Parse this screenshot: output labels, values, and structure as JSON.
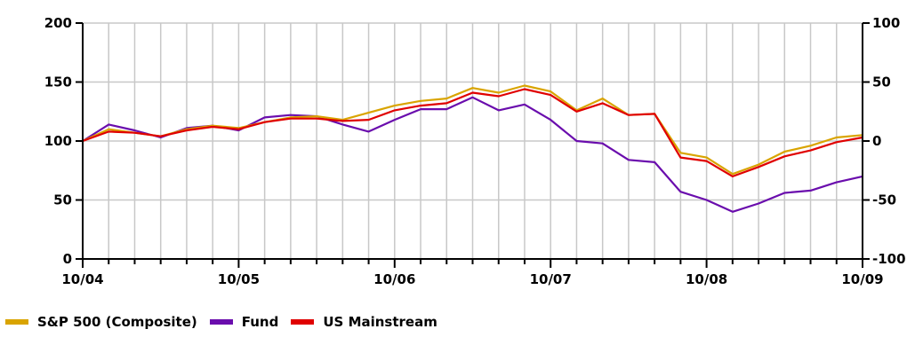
{
  "chart_data": {
    "type": "line",
    "left_axis": {
      "ticks": [
        0,
        50,
        100,
        150,
        200
      ],
      "tick_labels": [
        "0",
        "50",
        "100",
        "150",
        "200"
      ],
      "ylim": [
        0,
        200
      ]
    },
    "right_axis": {
      "ticks": [
        -100,
        -50,
        0,
        50,
        100
      ],
      "tick_labels": [
        "-100",
        "-50",
        "0",
        "50",
        "100"
      ],
      "ylim": [
        -100,
        100
      ]
    },
    "x_axis": {
      "xlim": [
        2004.75,
        2009.75
      ],
      "ticks": [
        2004.75,
        2005.75,
        2006.75,
        2007.75,
        2008.75,
        2009.75
      ],
      "tick_labels": [
        "10/04",
        "10/05",
        "10/06",
        "10/07",
        "10/08",
        "10/09"
      ]
    },
    "grid": true,
    "legend_position": "bottom-left",
    "x": [
      2004.75,
      2004.917,
      2005.083,
      2005.25,
      2005.417,
      2005.583,
      2005.75,
      2005.917,
      2006.083,
      2006.25,
      2006.417,
      2006.583,
      2006.75,
      2006.917,
      2007.083,
      2007.25,
      2007.417,
      2007.583,
      2007.75,
      2007.917,
      2008.083,
      2008.25,
      2008.417,
      2008.583,
      2008.75,
      2008.917,
      2009.083,
      2009.25,
      2009.417,
      2009.583,
      2009.75
    ],
    "series": [
      {
        "name": "S&P 500 (Composite)",
        "color": "#d9a400",
        "values": [
          100,
          110,
          107,
          104,
          110,
          113,
          111,
          116,
          120,
          121,
          118,
          124,
          130,
          134,
          136,
          145,
          141,
          147,
          142,
          126,
          136,
          122,
          123,
          90,
          86,
          72,
          80,
          91,
          96,
          103,
          105
        ]
      },
      {
        "name": "Fund",
        "color": "#6a0dad",
        "values": [
          100,
          114,
          109,
          103,
          111,
          113,
          109,
          120,
          122,
          121,
          114,
          108,
          118,
          127,
          127,
          137,
          126,
          131,
          118,
          100,
          98,
          84,
          82,
          57,
          50,
          40,
          47,
          56,
          58,
          65,
          70
        ]
      },
      {
        "name": "US Mainstream",
        "color": "#e00000",
        "values": [
          100,
          108,
          107,
          104,
          109,
          112,
          110,
          116,
          119,
          119,
          117,
          118,
          126,
          130,
          132,
          141,
          138,
          144,
          139,
          125,
          132,
          122,
          123,
          86,
          83,
          70,
          78,
          87,
          92,
          99,
          103
        ]
      }
    ]
  }
}
